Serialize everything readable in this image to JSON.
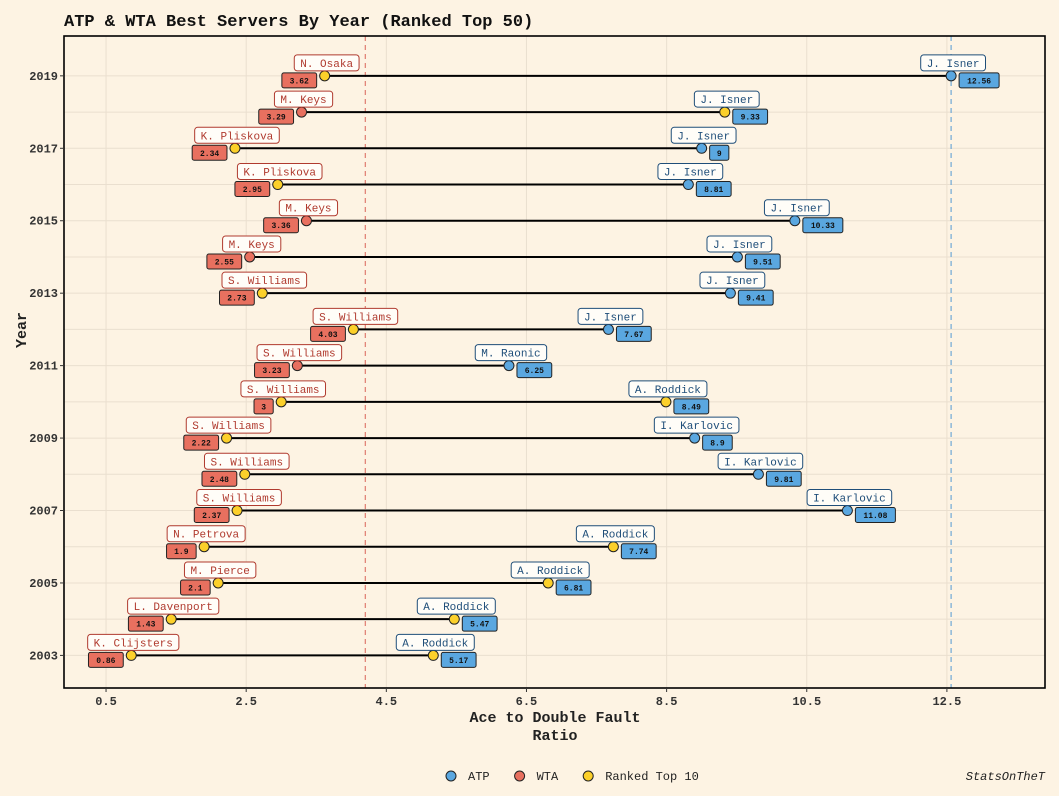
{
  "chart_data": {
    "type": "dumbbell",
    "title": "ATP & WTA Best Servers By Year (Ranked Top 50)",
    "xlabel_lines": [
      "Ace to Double Fault",
      "Ratio"
    ],
    "ylabel": "Year",
    "xlim": [
      -0.1,
      13.9
    ],
    "ylim": [
      2002.1,
      2020.1
    ],
    "x_ticks": [
      0.5,
      2.5,
      4.5,
      6.5,
      8.5,
      10.5,
      12.5
    ],
    "y_ticks": [
      2003,
      2005,
      2007,
      2009,
      2011,
      2013,
      2015,
      2017,
      2019
    ],
    "grid": true,
    "reference_lines": [
      {
        "x": 4.2,
        "color": "#e07b70"
      },
      {
        "x": 12.56,
        "color": "#6fa8d6"
      }
    ],
    "colors": {
      "atp": "#5aa7e0",
      "wta": "#e8705f",
      "top10": "#fcd02a",
      "atp_label": "#1f4e79",
      "wta_label": "#b03a2e"
    },
    "legend": {
      "position": "bottom",
      "items": [
        {
          "name": "ATP",
          "color": "#5aa7e0"
        },
        {
          "name": "WTA",
          "color": "#e8705f"
        },
        {
          "name": "Ranked Top 10",
          "color": "#fcd02a"
        }
      ]
    },
    "caption": "StatsOnTheT",
    "rows": [
      {
        "year": 2019,
        "wta": {
          "player": "N. Osaka",
          "value": 3.62,
          "top10": true
        },
        "atp": {
          "player": "J. Isner",
          "value": 12.56,
          "top10": false
        }
      },
      {
        "year": 2018,
        "wta": {
          "player": "M. Keys",
          "value": 3.29,
          "top10": false
        },
        "atp": {
          "player": "J. Isner",
          "value": 9.33,
          "top10": true
        }
      },
      {
        "year": 2017,
        "wta": {
          "player": "K. Pliskova",
          "value": 2.34,
          "top10": true
        },
        "atp": {
          "player": "J. Isner",
          "value": 9,
          "top10": false
        }
      },
      {
        "year": 2016,
        "wta": {
          "player": "K. Pliskova",
          "value": 2.95,
          "top10": true
        },
        "atp": {
          "player": "J. Isner",
          "value": 8.81,
          "top10": false
        }
      },
      {
        "year": 2015,
        "wta": {
          "player": "M. Keys",
          "value": 3.36,
          "top10": false
        },
        "atp": {
          "player": "J. Isner",
          "value": 10.33,
          "top10": false
        }
      },
      {
        "year": 2014,
        "wta": {
          "player": "M. Keys",
          "value": 2.55,
          "top10": false
        },
        "atp": {
          "player": "J. Isner",
          "value": 9.51,
          "top10": false
        }
      },
      {
        "year": 2013,
        "wta": {
          "player": "S. Williams",
          "value": 2.73,
          "top10": true
        },
        "atp": {
          "player": "J. Isner",
          "value": 9.41,
          "top10": false
        }
      },
      {
        "year": 2012,
        "wta": {
          "player": "S. Williams",
          "value": 4.03,
          "top10": true
        },
        "atp": {
          "player": "J. Isner",
          "value": 7.67,
          "top10": false
        }
      },
      {
        "year": 2011,
        "wta": {
          "player": "S. Williams",
          "value": 3.23,
          "top10": false
        },
        "atp": {
          "player": "M. Raonic",
          "value": 6.25,
          "top10": false
        }
      },
      {
        "year": 2010,
        "wta": {
          "player": "S. Williams",
          "value": 3,
          "top10": true
        },
        "atp": {
          "player": "A. Roddick",
          "value": 8.49,
          "top10": true
        }
      },
      {
        "year": 2009,
        "wta": {
          "player": "S. Williams",
          "value": 2.22,
          "top10": true
        },
        "atp": {
          "player": "I. Karlovic",
          "value": 8.9,
          "top10": false
        }
      },
      {
        "year": 2008,
        "wta": {
          "player": "S. Williams",
          "value": 2.48,
          "top10": true
        },
        "atp": {
          "player": "I. Karlovic",
          "value": 9.81,
          "top10": false
        }
      },
      {
        "year": 2007,
        "wta": {
          "player": "S. Williams",
          "value": 2.37,
          "top10": true
        },
        "atp": {
          "player": "I. Karlovic",
          "value": 11.08,
          "top10": false
        }
      },
      {
        "year": 2006,
        "wta": {
          "player": "N. Petrova",
          "value": 1.9,
          "top10": true
        },
        "atp": {
          "player": "A. Roddick",
          "value": 7.74,
          "top10": true
        }
      },
      {
        "year": 2005,
        "wta": {
          "player": "M. Pierce",
          "value": 2.1,
          "top10": true
        },
        "atp": {
          "player": "A. Roddick",
          "value": 6.81,
          "top10": true
        }
      },
      {
        "year": 2004,
        "wta": {
          "player": "L. Davenport",
          "value": 1.43,
          "top10": true
        },
        "atp": {
          "player": "A. Roddick",
          "value": 5.47,
          "top10": true
        }
      },
      {
        "year": 2003,
        "wta": {
          "player": "K. Clijsters",
          "value": 0.86,
          "top10": true
        },
        "atp": {
          "player": "A. Roddick",
          "value": 5.17,
          "top10": true
        }
      }
    ]
  }
}
